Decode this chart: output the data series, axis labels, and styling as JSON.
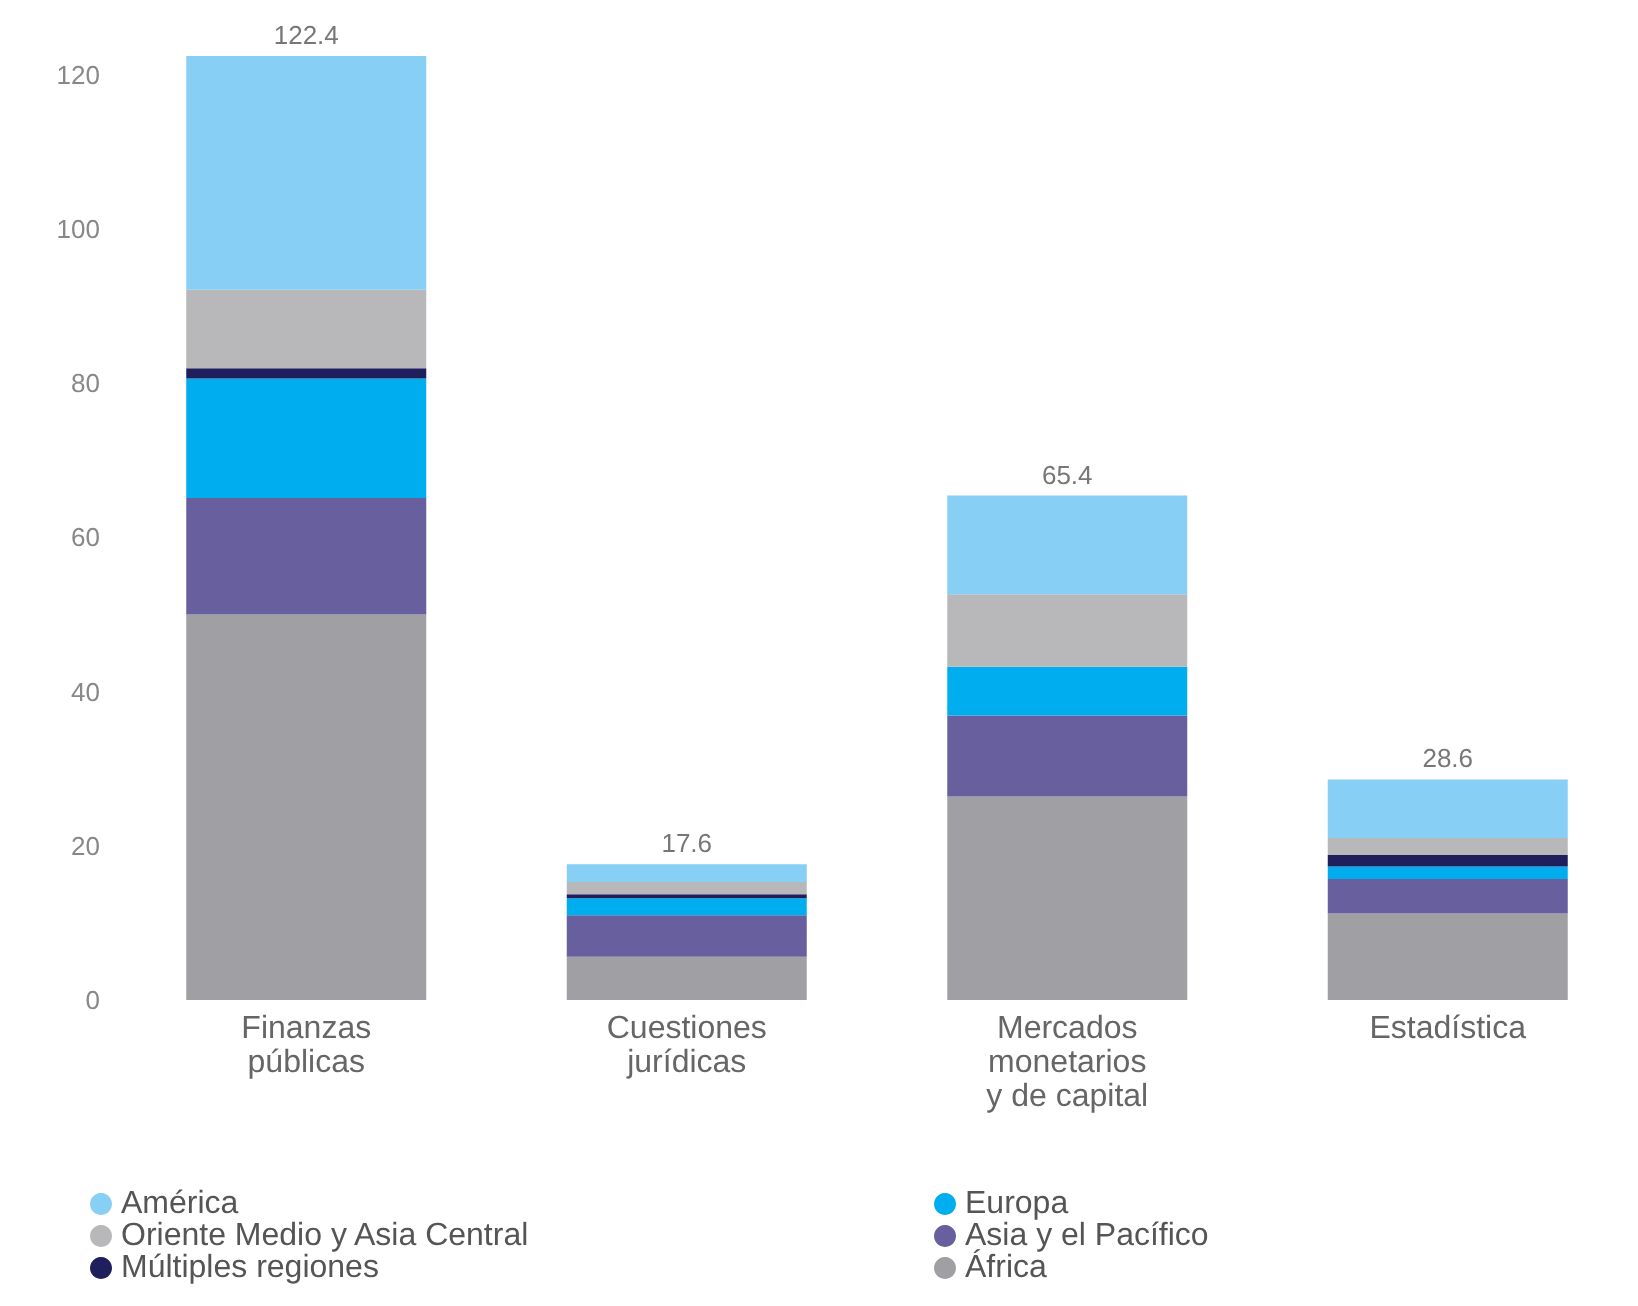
{
  "chart_data": {
    "type": "bar",
    "stacked": true,
    "categories": [
      "Finanzas\npúblicas",
      "Cuestiones\njurídicas",
      "Mercados\nmonetarios\ny de capital",
      "Estadística"
    ],
    "series": [
      {
        "name": "África",
        "color": "#a0a0a4",
        "values": [
          50.0,
          5.6,
          26.4,
          11.2
        ]
      },
      {
        "name": "Asia y el Pacífico",
        "color": "#675f9e",
        "values": [
          15.1,
          5.4,
          10.5,
          4.5
        ]
      },
      {
        "name": "Europa",
        "color": "#00aeef",
        "values": [
          15.5,
          2.2,
          6.3,
          1.6
        ]
      },
      {
        "name": "Múltiples regiones",
        "color": "#1f1f5e",
        "values": [
          1.3,
          0.5,
          0,
          1.5
        ]
      },
      {
        "name": "Oriente Medio y Asia Central",
        "color": "#b8b8ba",
        "values": [
          10.2,
          1.6,
          9.4,
          2.2
        ]
      },
      {
        "name": "América",
        "color": "#87cff5",
        "values": [
          30.3,
          2.3,
          12.8,
          7.6
        ]
      }
    ],
    "totals": [
      "122.4",
      "17.6",
      "65.4",
      "28.6"
    ],
    "ylim": [
      0,
      122.4
    ],
    "yticks": [
      0,
      20,
      40,
      60,
      80,
      100,
      120
    ],
    "legend": "bottom left"
  }
}
